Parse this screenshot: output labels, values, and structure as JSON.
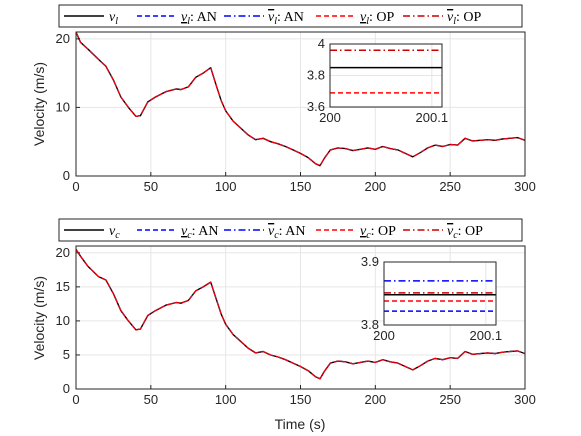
{
  "chart_data": [
    {
      "type": "line",
      "ylabel": "Velocity (m/s)",
      "xlabel": "",
      "xlim": [
        0,
        300
      ],
      "ylim": [
        0,
        21
      ],
      "xticks": [
        "0",
        "50",
        "100",
        "150",
        "200",
        "250",
        "300"
      ],
      "yticks": [
        "0",
        "10",
        "20"
      ],
      "grid": true,
      "legend_placement": "top",
      "legend": [
        {
          "label": "v_l",
          "color": "#000000",
          "dash": "solid"
        },
        {
          "label": "v_l underline: AN",
          "color": "#0000ff",
          "dash": "dashed"
        },
        {
          "label": "v_l overline: AN",
          "color": "#0000ff",
          "dash": "dashdot"
        },
        {
          "label": "v_l underline: OP",
          "color": "#ff0000",
          "dash": "dashed"
        },
        {
          "label": "v_l overline: OP",
          "color": "#cc0000",
          "dash": "dashdot"
        }
      ],
      "series_x": [
        0,
        3,
        8,
        15,
        20,
        25,
        30,
        35,
        40,
        43,
        48,
        53,
        60,
        67,
        70,
        75,
        80,
        85,
        90,
        94,
        97,
        100,
        105,
        110,
        115,
        120,
        125,
        130,
        135,
        140,
        145,
        150,
        155,
        160,
        163,
        166,
        170,
        175,
        180,
        185,
        190,
        195,
        200,
        205,
        210,
        215,
        220,
        225,
        230,
        235,
        240,
        245,
        250,
        255,
        260,
        265,
        270,
        275,
        280,
        285,
        290,
        295,
        300
      ],
      "series_y": [
        21,
        19.5,
        18.5,
        17,
        16,
        14,
        11.5,
        10,
        8.7,
        8.8,
        10.8,
        11.5,
        12.3,
        12.7,
        12.6,
        13,
        14.4,
        15,
        15.8,
        13,
        11,
        9.5,
        8,
        7,
        6,
        5.3,
        5.5,
        5,
        4.7,
        4.3,
        3.8,
        3.3,
        2.7,
        1.8,
        1.5,
        2.6,
        3.8,
        4.1,
        4,
        3.7,
        3.9,
        4.1,
        3.9,
        4.3,
        4,
        3.8,
        3.3,
        2.8,
        3.4,
        4.1,
        4.5,
        4.3,
        4.6,
        4.5,
        5.5,
        5.1,
        5.2,
        5.3,
        5.2,
        5.4,
        5.5,
        5.6,
        5.2
      ],
      "inset": {
        "xlim": [
          200,
          200.11
        ],
        "ylim": [
          3.6,
          4.0
        ],
        "xticks": [
          "200",
          "200.1"
        ],
        "yticks": [
          "4",
          "3.8",
          "3.6"
        ],
        "lines": [
          {
            "name": "v_l",
            "y": 3.85,
            "color": "#000000",
            "dash": "solid"
          },
          {
            "name": "v_l upper OP",
            "y": 3.96,
            "color": "#cc0000",
            "dash": "dashdot"
          },
          {
            "name": "v_l lower OP",
            "y": 3.69,
            "color": "#ff0000",
            "dash": "dashed"
          }
        ]
      }
    },
    {
      "type": "line",
      "ylabel": "Velocity (m/s)",
      "xlabel": "Time (s)",
      "xlim": [
        0,
        300
      ],
      "ylim": [
        0,
        21
      ],
      "xticks": [
        "0",
        "50",
        "100",
        "150",
        "200",
        "250",
        "300"
      ],
      "yticks": [
        "0",
        "5",
        "10",
        "15",
        "20"
      ],
      "grid": true,
      "legend_placement": "top",
      "legend": [
        {
          "label": "v_c",
          "color": "#000000",
          "dash": "solid"
        },
        {
          "label": "v_c underline: AN",
          "color": "#0000ff",
          "dash": "dashed"
        },
        {
          "label": "v_c overline: AN",
          "color": "#0000ff",
          "dash": "dashdot"
        },
        {
          "label": "v_c underline: OP",
          "color": "#ff0000",
          "dash": "dashed"
        },
        {
          "label": "v_c overline: OP",
          "color": "#cc0000",
          "dash": "dashdot"
        }
      ],
      "series_x": [
        0,
        3,
        8,
        15,
        20,
        25,
        30,
        35,
        40,
        43,
        48,
        53,
        60,
        67,
        70,
        75,
        80,
        85,
        90,
        94,
        97,
        100,
        105,
        110,
        115,
        120,
        125,
        130,
        135,
        140,
        145,
        150,
        155,
        160,
        163,
        166,
        170,
        175,
        180,
        185,
        190,
        195,
        200,
        205,
        210,
        215,
        220,
        225,
        230,
        235,
        240,
        245,
        250,
        255,
        260,
        265,
        270,
        275,
        280,
        285,
        290,
        295,
        300
      ],
      "series_y": [
        20.5,
        19.5,
        18,
        16.5,
        16,
        14,
        11.5,
        10,
        8.7,
        8.8,
        10.8,
        11.5,
        12.3,
        12.7,
        12.6,
        13,
        14.4,
        15,
        15.7,
        13,
        11,
        9.5,
        8,
        7,
        6,
        5.3,
        5.5,
        5,
        4.7,
        4.3,
        3.8,
        3.3,
        2.7,
        1.8,
        1.5,
        2.6,
        3.8,
        4.1,
        4,
        3.7,
        3.9,
        4.1,
        3.9,
        4.3,
        4,
        3.8,
        3.3,
        2.8,
        3.4,
        4.1,
        4.5,
        4.3,
        4.6,
        4.5,
        5.5,
        5.1,
        5.2,
        5.3,
        5.2,
        5.4,
        5.5,
        5.6,
        5.2
      ],
      "inset": {
        "xlim": [
          200,
          200.11
        ],
        "ylim": [
          3.8,
          3.9
        ],
        "xticks": [
          "200",
          "200.1"
        ],
        "yticks": [
          "3.9",
          "3.8"
        ],
        "lines": [
          {
            "name": "v_c upper AN",
            "y": 3.87,
            "color": "#0000ff",
            "dash": "dashdot"
          },
          {
            "name": "v_c upper OP",
            "y": 3.851,
            "color": "#cc0000",
            "dash": "dashdot"
          },
          {
            "name": "v_c",
            "y": 3.848,
            "color": "#000000",
            "dash": "solid"
          },
          {
            "name": "v_c lower OP",
            "y": 3.838,
            "color": "#ff0000",
            "dash": "dashed"
          },
          {
            "name": "v_c lower AN",
            "y": 3.822,
            "color": "#0000ff",
            "dash": "dashed"
          }
        ]
      }
    }
  ]
}
